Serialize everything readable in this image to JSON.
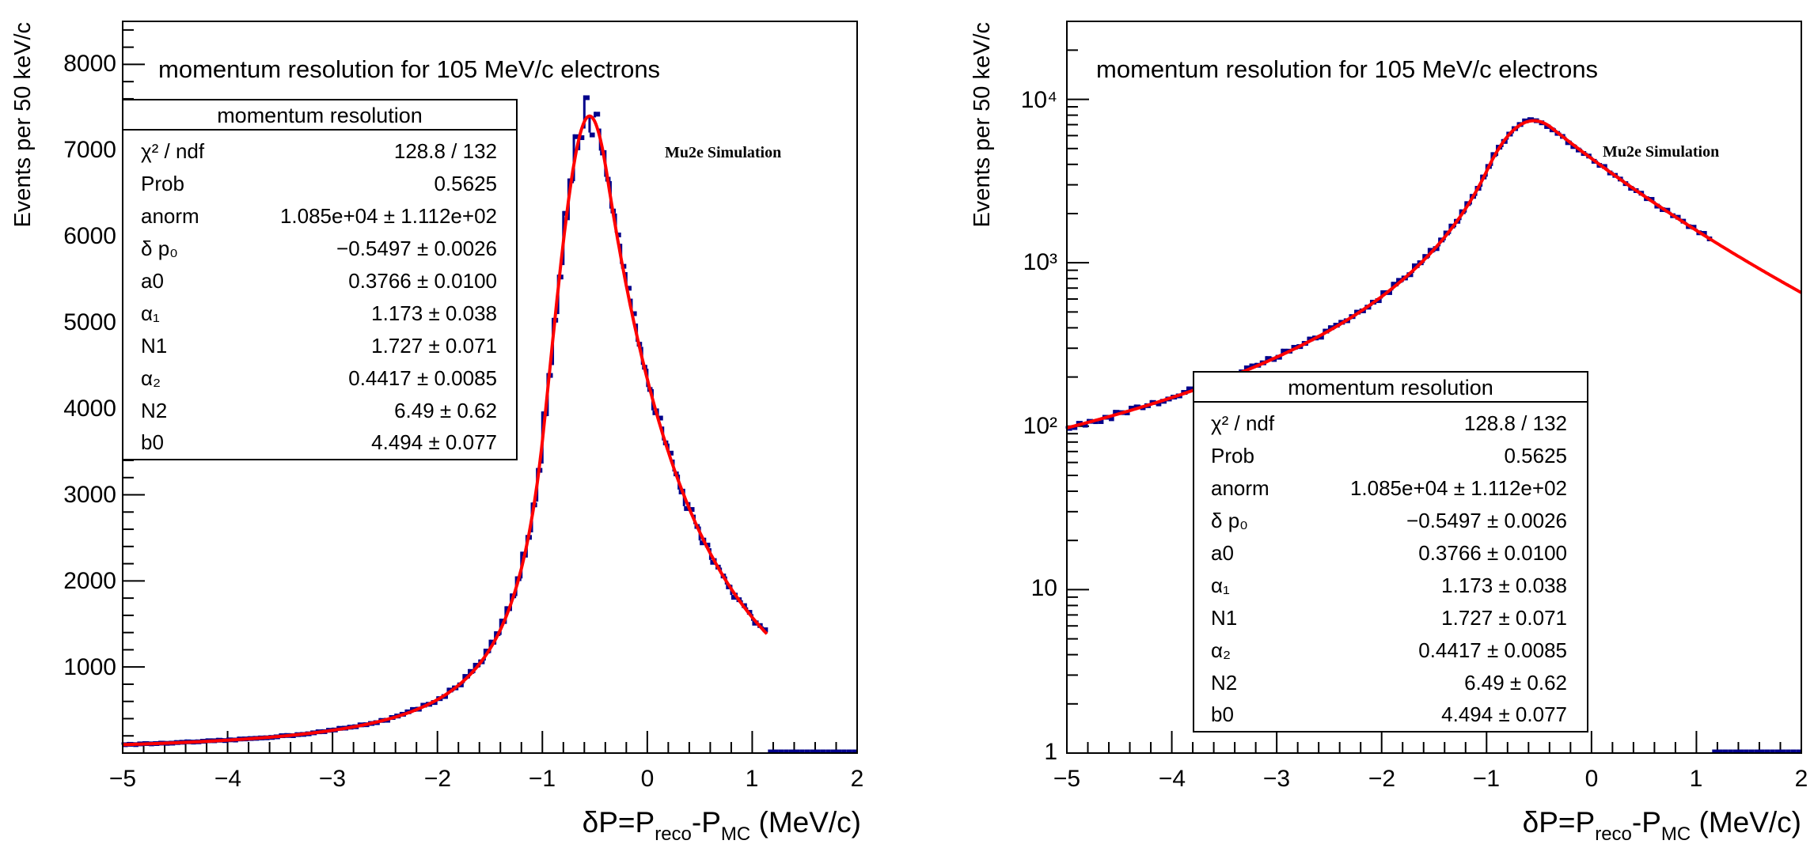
{
  "colors": {
    "hist": "#00008b",
    "fit": "#ff0000",
    "axis": "#000000"
  },
  "chart_data": [
    {
      "type": "histogram",
      "scale": "linear",
      "title": "momentum resolution for 105 MeV/c electrons",
      "watermark": "Mu2e Simulation",
      "xlabel": {
        "main": "δP=P",
        "sub1": "reco",
        "mid": "-P",
        "sub2": "MC",
        "tail": " (MeV/c)"
      },
      "ylabel": "Events per 50 keV/c",
      "xlim": [
        -5,
        2
      ],
      "ylim": [
        0,
        8500
      ],
      "x_ticks": [
        "−5",
        "−4",
        "−3",
        "−2",
        "−1",
        "0",
        "1",
        "2"
      ],
      "y_ticks": [
        "1000",
        "2000",
        "3000",
        "4000",
        "5000",
        "6000",
        "7000",
        "8000"
      ],
      "fit": {
        "peak": -0.55,
        "height": 7400,
        "sigma": 0.3766,
        "alpha1": 1.173,
        "n1": 1.727,
        "alpha2": 0.4417,
        "n2": 6.49
      },
      "stats": {
        "header": "momentum resolution",
        "rows": [
          {
            "name": "χ² / ndf",
            "value": "128.8 / 132"
          },
          {
            "name": "Prob",
            "value": "0.5625"
          },
          {
            "name": "anorm",
            "value": "1.085e+04 ± 1.112e+02"
          },
          {
            "name": "δ p₀",
            "value": "−0.5497 ± 0.0026"
          },
          {
            "name": "a0",
            "value": "0.3766 ± 0.0100"
          },
          {
            "name": "α₁",
            "value": "1.173 ± 0.038"
          },
          {
            "name": "N1",
            "value": "1.727 ± 0.071"
          },
          {
            "name": "α₂",
            "value": "0.4417 ± 0.0085"
          },
          {
            "name": "N2",
            "value": "6.49 ± 0.62"
          },
          {
            "name": "b0",
            "value": "4.494 ± 0.077"
          }
        ]
      }
    },
    {
      "type": "histogram",
      "scale": "log",
      "title": "momentum resolution for 105 MeV/c electrons",
      "watermark": "Mu2e Simulation",
      "xlabel": {
        "main": "δP=P",
        "sub1": "reco",
        "mid": "-P",
        "sub2": "MC",
        "tail": " (MeV/c)"
      },
      "ylabel": "Events per 50 keV/c",
      "xlim": [
        -5,
        2
      ],
      "ylim": [
        1,
        30000
      ],
      "x_ticks": [
        "−5",
        "−4",
        "−3",
        "−2",
        "−1",
        "0",
        "1",
        "2"
      ],
      "y_ticks": [
        "1",
        "10",
        "10²",
        "10³",
        "10⁴"
      ],
      "fit": {
        "peak": -0.55,
        "height": 7400,
        "sigma": 0.3766,
        "alpha1": 1.173,
        "n1": 1.727,
        "alpha2": 0.4417,
        "n2": 6.49
      },
      "stats": {
        "header": "momentum resolution",
        "rows": [
          {
            "name": "χ² / ndf",
            "value": "128.8 / 132"
          },
          {
            "name": "Prob",
            "value": "0.5625"
          },
          {
            "name": "anorm",
            "value": "1.085e+04 ± 1.112e+02"
          },
          {
            "name": "δ p₀",
            "value": "−0.5497 ± 0.0026"
          },
          {
            "name": "a0",
            "value": "0.3766 ± 0.0100"
          },
          {
            "name": "α₁",
            "value": "1.173 ± 0.038"
          },
          {
            "name": "N1",
            "value": "1.727 ± 0.071"
          },
          {
            "name": "α₂",
            "value": "0.4417 ± 0.0085"
          },
          {
            "name": "N2",
            "value": "6.49 ± 0.62"
          },
          {
            "name": "b0",
            "value": "4.494 ± 0.077"
          }
        ]
      }
    }
  ]
}
